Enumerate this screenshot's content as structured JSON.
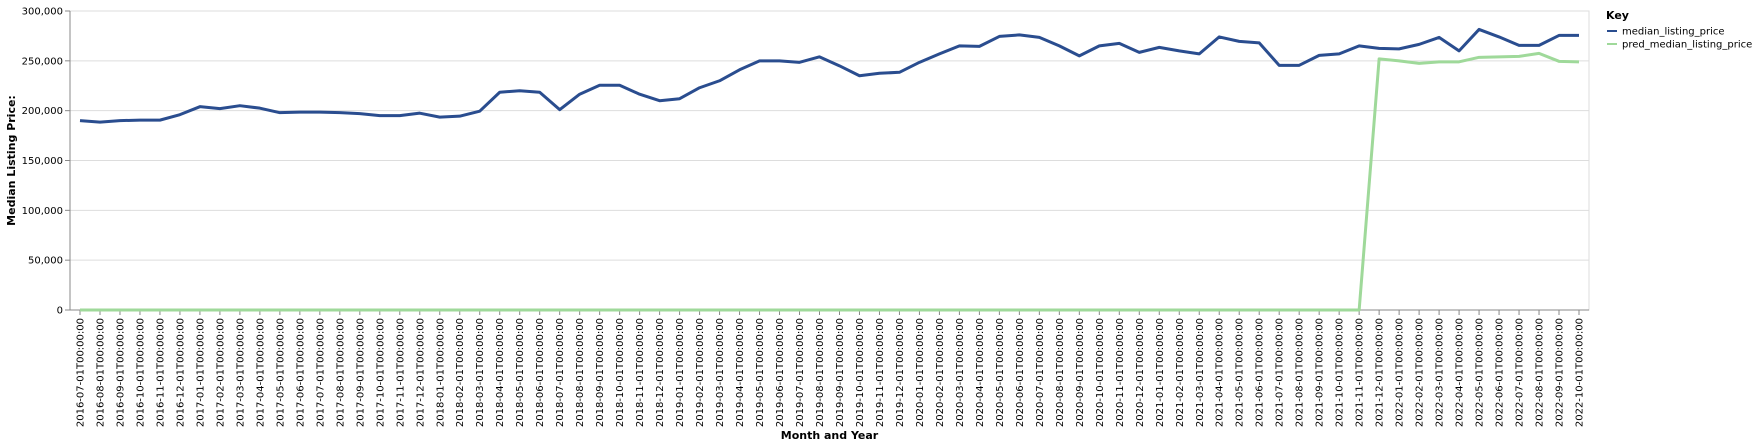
{
  "chart_data": {
    "type": "line",
    "title": "",
    "xlabel": "Month and Year",
    "ylabel": "Median Listing Price:",
    "ylim": [
      0,
      300000
    ],
    "yticks": [
      0,
      50000,
      100000,
      150000,
      200000,
      250000,
      300000
    ],
    "ytick_labels": [
      "0",
      "50,000",
      "100,000",
      "150,000",
      "200,000",
      "250,000",
      "300,000"
    ],
    "grid": true,
    "legend": {
      "title": "Key",
      "position": "top-right"
    },
    "x": [
      "2016-07-01T00:00:00",
      "2016-08-01T00:00:00",
      "2016-09-01T00:00:00",
      "2016-10-01T00:00:00",
      "2016-11-01T00:00:00",
      "2016-12-01T00:00:00",
      "2017-01-01T00:00:00",
      "2017-02-01T00:00:00",
      "2017-03-01T00:00:00",
      "2017-04-01T00:00:00",
      "2017-05-01T00:00:00",
      "2017-06-01T00:00:00",
      "2017-07-01T00:00:00",
      "2017-08-01T00:00:00",
      "2017-09-01T00:00:00",
      "2017-10-01T00:00:00",
      "2017-11-01T00:00:00",
      "2017-12-01T00:00:00",
      "2018-01-01T00:00:00",
      "2018-02-01T00:00:00",
      "2018-03-01T00:00:00",
      "2018-04-01T00:00:00",
      "2018-05-01T00:00:00",
      "2018-06-01T00:00:00",
      "2018-07-01T00:00:00",
      "2018-08-01T00:00:00",
      "2018-09-01T00:00:00",
      "2018-10-01T00:00:00",
      "2018-11-01T00:00:00",
      "2018-12-01T00:00:00",
      "2019-01-01T00:00:00",
      "2019-02-01T00:00:00",
      "2019-03-01T00:00:00",
      "2019-04-01T00:00:00",
      "2019-05-01T00:00:00",
      "2019-06-01T00:00:00",
      "2019-07-01T00:00:00",
      "2019-08-01T00:00:00",
      "2019-09-01T00:00:00",
      "2019-10-01T00:00:00",
      "2019-11-01T00:00:00",
      "2019-12-01T00:00:00",
      "2020-01-01T00:00:00",
      "2020-02-01T00:00:00",
      "2020-03-01T00:00:00",
      "2020-04-01T00:00:00",
      "2020-05-01T00:00:00",
      "2020-06-01T00:00:00",
      "2020-07-01T00:00:00",
      "2020-08-01T00:00:00",
      "2020-09-01T00:00:00",
      "2020-10-01T00:00:00",
      "2020-11-01T00:00:00",
      "2020-12-01T00:00:00",
      "2021-01-01T00:00:00",
      "2021-02-01T00:00:00",
      "2021-03-01T00:00:00",
      "2021-04-01T00:00:00",
      "2021-05-01T00:00:00",
      "2021-06-01T00:00:00",
      "2021-07-01T00:00:00",
      "2021-08-01T00:00:00",
      "2021-09-01T00:00:00",
      "2021-10-01T00:00:00",
      "2021-11-01T00:00:00",
      "2021-12-01T00:00:00",
      "2022-01-01T00:00:00",
      "2022-02-01T00:00:00",
      "2022-03-01T00:00:00",
      "2022-04-01T00:00:00",
      "2022-05-01T00:00:00",
      "2022-06-01T00:00:00",
      "2022-07-01T00:00:00",
      "2022-08-01T00:00:00",
      "2022-09-01T00:00:00",
      "2022-10-01T00:00:00"
    ],
    "series": [
      {
        "name": "median_listing_price",
        "color": "#2a4d8f",
        "values": [
          190000,
          188500,
          190000,
          190500,
          190500,
          196000,
          204000,
          202000,
          205000,
          202500,
          198000,
          198500,
          198500,
          198000,
          197000,
          195000,
          195000,
          197500,
          193500,
          194500,
          199500,
          218500,
          220000,
          218500,
          201000,
          216500,
          225500,
          225500,
          216500,
          210000,
          212000,
          223000,
          230000,
          241000,
          250000,
          250000,
          248500,
          254000,
          245000,
          235000,
          237500,
          238500,
          248500,
          257000,
          265000,
          264500,
          274500,
          276000,
          273500,
          265000,
          255000,
          265000,
          267500,
          258500,
          263500,
          260000,
          257000,
          274000,
          269500,
          268000,
          245500,
          245500,
          255500,
          257000,
          265000,
          262500,
          262000,
          266500,
          273500,
          260000,
          281500,
          274000,
          265500,
          265500,
          275500,
          275500
        ]
      },
      {
        "name": "pred_median_listing_price",
        "color": "#9fd99a",
        "values": [
          0,
          0,
          0,
          0,
          0,
          0,
          0,
          0,
          0,
          0,
          0,
          0,
          0,
          0,
          0,
          0,
          0,
          0,
          0,
          0,
          0,
          0,
          0,
          0,
          0,
          0,
          0,
          0,
          0,
          0,
          0,
          0,
          0,
          0,
          0,
          0,
          0,
          0,
          0,
          0,
          0,
          0,
          0,
          0,
          0,
          0,
          0,
          0,
          0,
          0,
          0,
          0,
          0,
          0,
          0,
          0,
          0,
          0,
          0,
          0,
          0,
          0,
          0,
          0,
          0,
          252000,
          250000,
          247500,
          249000,
          249000,
          253500,
          254000,
          254500,
          257500,
          249500,
          249000
        ]
      }
    ]
  }
}
